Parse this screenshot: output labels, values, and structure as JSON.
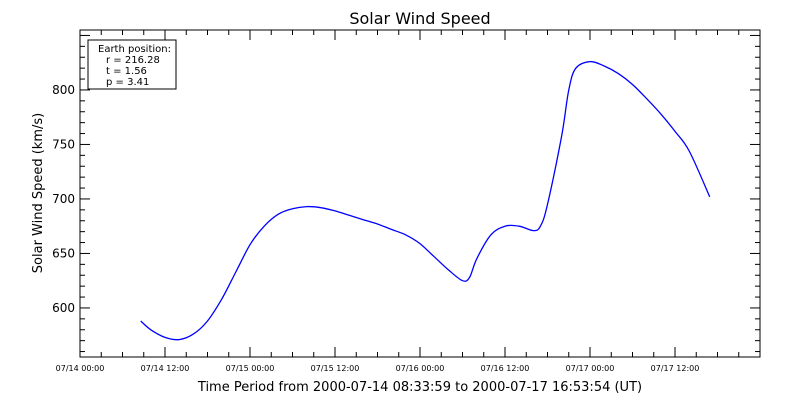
{
  "chart_data": {
    "type": "line",
    "title": "Solar Wind Speed",
    "xlabel": "Time Period from 2000-07-14 08:33:59 to 2000-07-17 16:53:54 (UT)",
    "ylabel": "Solar Wind Speed (km/s)",
    "ylim": [
      555,
      855
    ],
    "xlim": [
      "2000-07-14 00:00",
      "2000-07-18 00:00"
    ],
    "y_ticks": [
      600,
      650,
      700,
      750,
      800
    ],
    "x_ticks": [
      "07/14 00:00",
      "07/14 12:00",
      "07/15 00:00",
      "07/15 12:00",
      "07/16 00:00",
      "07/16 12:00",
      "07/17 00:00",
      "07/17 12:00"
    ],
    "grid": false,
    "line_color": "#0000ff",
    "info_box": {
      "heading": "Earth position:",
      "lines": [
        "r = 216.28",
        "t = 1.56",
        "p = 3.41"
      ]
    },
    "series": [
      {
        "x": [
          "2000-07-14 08:34",
          "2000-07-14 10:00",
          "2000-07-14 12:00",
          "2000-07-14 14:00",
          "2000-07-14 16:00",
          "2000-07-14 18:00",
          "2000-07-14 20:00",
          "2000-07-14 22:00",
          "2000-07-15 00:00",
          "2000-07-15 02:00",
          "2000-07-15 04:00",
          "2000-07-15 06:00",
          "2000-07-15 08:00",
          "2000-07-15 10:00",
          "2000-07-15 12:00",
          "2000-07-15 14:00",
          "2000-07-15 16:00",
          "2000-07-15 18:00",
          "2000-07-15 20:00",
          "2000-07-15 22:00",
          "2000-07-16 00:00",
          "2000-07-16 02:00",
          "2000-07-16 04:00",
          "2000-07-16 06:00",
          "2000-07-16 07:00",
          "2000-07-16 08:00",
          "2000-07-16 10:00",
          "2000-07-16 12:00",
          "2000-07-16 14:00",
          "2000-07-16 16:00",
          "2000-07-16 17:00",
          "2000-07-16 18:00",
          "2000-07-16 20:00",
          "2000-07-16 21:00",
          "2000-07-16 22:00",
          "2000-07-17 00:00",
          "2000-07-17 02:00",
          "2000-07-17 04:00",
          "2000-07-17 06:00",
          "2000-07-17 08:00",
          "2000-07-17 10:00",
          "2000-07-17 12:00",
          "2000-07-17 14:00",
          "2000-07-17 16:54"
        ],
        "y": [
          588,
          580,
          573,
          571,
          576,
          588,
          608,
          633,
          658,
          675,
          686,
          691,
          693,
          692,
          689,
          685,
          681,
          677,
          672,
          667,
          659,
          647,
          635,
          625,
          628,
          645,
          667,
          675,
          675,
          671,
          675,
          695,
          758,
          800,
          820,
          826,
          822,
          815,
          805,
          792,
          778,
          762,
          744,
          702
        ]
      }
    ]
  }
}
